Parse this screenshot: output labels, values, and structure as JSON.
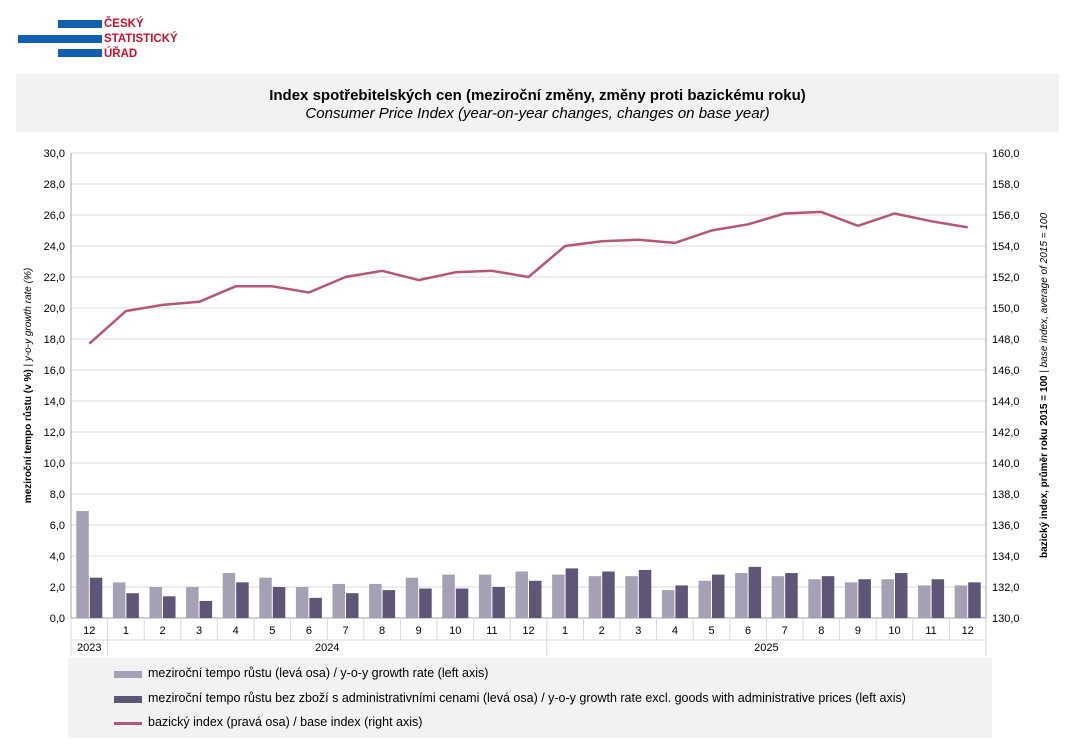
{
  "logo": {
    "lines": [
      "ČESKÝ",
      "STATISTICKÝ",
      "ÚŘAD"
    ],
    "colors": {
      "blue": "#1060b0",
      "red": "#c8102e"
    }
  },
  "header": {
    "title_cz": "Index spotřebitelských cen (meziroční změny, změny proti bazickému roku)",
    "title_en": "Consumer Price Index (year-on-year changes, changes on base year)"
  },
  "chart_data": {
    "type": "bar",
    "categories": [
      "12",
      "1",
      "2",
      "3",
      "4",
      "5",
      "6",
      "7",
      "8",
      "9",
      "10",
      "11",
      "12",
      "1",
      "2",
      "3",
      "4",
      "5",
      "6",
      "7",
      "8",
      "9",
      "10",
      "11",
      "12"
    ],
    "years": [
      {
        "label": "2023",
        "from": 0,
        "to": 0
      },
      {
        "label": "2024",
        "from": 1,
        "to": 12
      },
      {
        "label": "2025",
        "from": 13,
        "to": 24
      }
    ],
    "series": [
      {
        "name": "meziroční tempo růstu (levá osa) / y-o-y growth rate (left axis)",
        "type": "bar",
        "axis": "left",
        "color": "#a6a0b5",
        "values": [
          6.9,
          2.3,
          2.0,
          2.0,
          2.9,
          2.6,
          2.0,
          2.2,
          2.2,
          2.6,
          2.8,
          2.8,
          3.0,
          2.8,
          2.7,
          2.7,
          1.8,
          2.4,
          2.9,
          2.7,
          2.5,
          2.3,
          2.5,
          2.1,
          2.1
        ]
      },
      {
        "name": "meziroční tempo růstu bez zboží s administrativními cenami (levá osa) / y-o-y growth rate excl. goods with administrative prices (left axis)",
        "type": "bar",
        "axis": "left",
        "color": "#5f5577",
        "values": [
          2.6,
          1.6,
          1.4,
          1.1,
          2.3,
          2.0,
          1.3,
          1.6,
          1.8,
          1.9,
          1.9,
          2.0,
          2.4,
          3.2,
          3.0,
          3.1,
          2.1,
          2.8,
          3.3,
          2.9,
          2.7,
          2.5,
          2.9,
          2.5,
          2.3
        ]
      },
      {
        "name": "bazický index (pravá osa) / base index (right axis)",
        "type": "line",
        "axis": "right",
        "color": "#b5557a",
        "values": [
          147.7,
          149.8,
          150.2,
          150.4,
          151.4,
          151.4,
          151.0,
          152.0,
          152.4,
          151.8,
          152.3,
          152.4,
          152.0,
          154.0,
          154.3,
          154.4,
          154.2,
          155.0,
          155.4,
          156.1,
          156.2,
          155.3,
          156.1,
          155.6,
          155.2
        ]
      }
    ],
    "ylabel_left": "meziroční tempo růstu (v %)",
    "ylabel_left_en": "y-o-y growth rate (%)",
    "ylabel_right": "bazický index, průměr roku 2015 = 100",
    "ylabel_right_en": "base index, average of 2015 = 100",
    "ylim_left": [
      0,
      30
    ],
    "ylim_right": [
      130,
      160
    ],
    "yticks_left": [
      "0,0",
      "2,0",
      "4,0",
      "6,0",
      "8,0",
      "10,0",
      "12,0",
      "14,0",
      "16,0",
      "18,0",
      "20,0",
      "22,0",
      "24,0",
      "26,0",
      "28,0",
      "30,0"
    ],
    "yticks_right": [
      "130,0",
      "132,0",
      "134,0",
      "136,0",
      "138,0",
      "140,0",
      "142,0",
      "144,0",
      "146,0",
      "148,0",
      "150,0",
      "152,0",
      "154,0",
      "156,0",
      "158,0",
      "160,0"
    ],
    "grid": true,
    "legend_position": "bottom"
  }
}
